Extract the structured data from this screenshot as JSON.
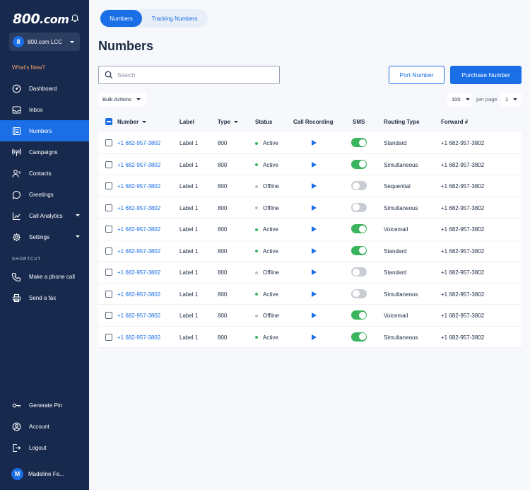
{
  "app": {
    "logo_main": "800",
    "logo_suffix": ".com",
    "account": {
      "badge": "8",
      "name": "800.com LCC"
    },
    "whats_new": "What's New?"
  },
  "sidebar": {
    "items": [
      {
        "label": "Dashboard",
        "icon": "gauge-icon"
      },
      {
        "label": "Inbox",
        "icon": "inbox-icon"
      },
      {
        "label": "Numbers",
        "icon": "numbers-icon",
        "active": true
      },
      {
        "label": "Campaigns",
        "icon": "broadcast-icon"
      },
      {
        "label": "Contacts",
        "icon": "contacts-icon"
      },
      {
        "label": "Greetings",
        "icon": "chat-bubble-icon"
      },
      {
        "label": "Call Analytics",
        "icon": "analytics-icon",
        "expandable": true
      },
      {
        "label": "Settings",
        "icon": "gear-icon",
        "expandable": true
      }
    ],
    "shortcut_heading": "SHORTCUT",
    "shortcuts": [
      {
        "label": "Make a phone call",
        "icon": "phone-icon"
      },
      {
        "label": "Send a fax",
        "icon": "fax-icon"
      }
    ],
    "bottom": [
      {
        "label": "Generate Pin",
        "icon": "key-icon"
      },
      {
        "label": "Account",
        "icon": "account-icon"
      },
      {
        "label": "Logout",
        "icon": "logout-icon"
      }
    ],
    "user": {
      "initial": "M",
      "name": "Madeline Fe..."
    }
  },
  "tabs": [
    {
      "label": "Numbers",
      "active": true
    },
    {
      "label": "Tracking Numbers"
    }
  ],
  "page_title": "Numbers",
  "search": {
    "placeholder": "Search",
    "value": ""
  },
  "buttons": {
    "port": "Port Number",
    "purchase": "Purchase Number"
  },
  "bulk_actions": "Bulk Actions",
  "pagination": {
    "per_page_value": "100",
    "per_page_label": "per page",
    "page": "1"
  },
  "table": {
    "headers": [
      "Number",
      "Label",
      "Type",
      "Status",
      "Call Recording",
      "SMS",
      "Routing Type",
      "Forward #"
    ],
    "rows": [
      {
        "number": "+1 682-957-3802",
        "label": "Label 1",
        "type": "800",
        "status": "Active",
        "sms": true,
        "routing": "Standard",
        "forward": "+1 682-957-3802"
      },
      {
        "number": "+1 682-957-3802",
        "label": "Label 1",
        "type": "800",
        "status": "Active",
        "sms": true,
        "routing": "Simultaneous",
        "forward": "+1 682-957-3802"
      },
      {
        "number": "+1 682-957-3802",
        "label": "Label 1",
        "type": "800",
        "status": "Offline",
        "sms": false,
        "routing": "Sequential",
        "forward": "+1 682-957-3802"
      },
      {
        "number": "+1 682-957-3802",
        "label": "Label 1",
        "type": "800",
        "status": "Offline",
        "sms": false,
        "routing": "Simultaneous",
        "forward": "+1 682-957-3802"
      },
      {
        "number": "+1 682-957-3802",
        "label": "Label 1",
        "type": "800",
        "status": "Active",
        "sms": true,
        "routing": "Voicemail",
        "forward": "+1 682-957-3802"
      },
      {
        "number": "+1 682-957-3802",
        "label": "Label 1",
        "type": "800",
        "status": "Active",
        "sms": true,
        "routing": "Standard",
        "forward": "+1 682-957-3802"
      },
      {
        "number": "+1 682-957-3802",
        "label": "Label 1",
        "type": "800",
        "status": "Offline",
        "sms": false,
        "routing": "Standard",
        "forward": "+1 682-957-3802"
      },
      {
        "number": "+1 682-957-3802",
        "label": "Label 1",
        "type": "800",
        "status": "Active",
        "sms": false,
        "routing": "Simultaneous",
        "forward": "+1 682-957-3802"
      },
      {
        "number": "+1 682-957-3802",
        "label": "Label 1",
        "type": "800",
        "status": "Offline",
        "sms": true,
        "routing": "Voicemail",
        "forward": "+1 682-957-3802"
      },
      {
        "number": "+1 682-957-3802",
        "label": "Label 1",
        "type": "800",
        "status": "Active",
        "sms": true,
        "routing": "Simultaneous",
        "forward": "+1 682-957-3802"
      }
    ]
  },
  "colors": {
    "sidebar_bg": "#17294d",
    "accent": "#1a6ee6",
    "active_green": "#3bb45e",
    "offline_gray": "#b7bdc7",
    "toggle_off": "#c8ccd3",
    "whats_new": "#f0a06a"
  }
}
